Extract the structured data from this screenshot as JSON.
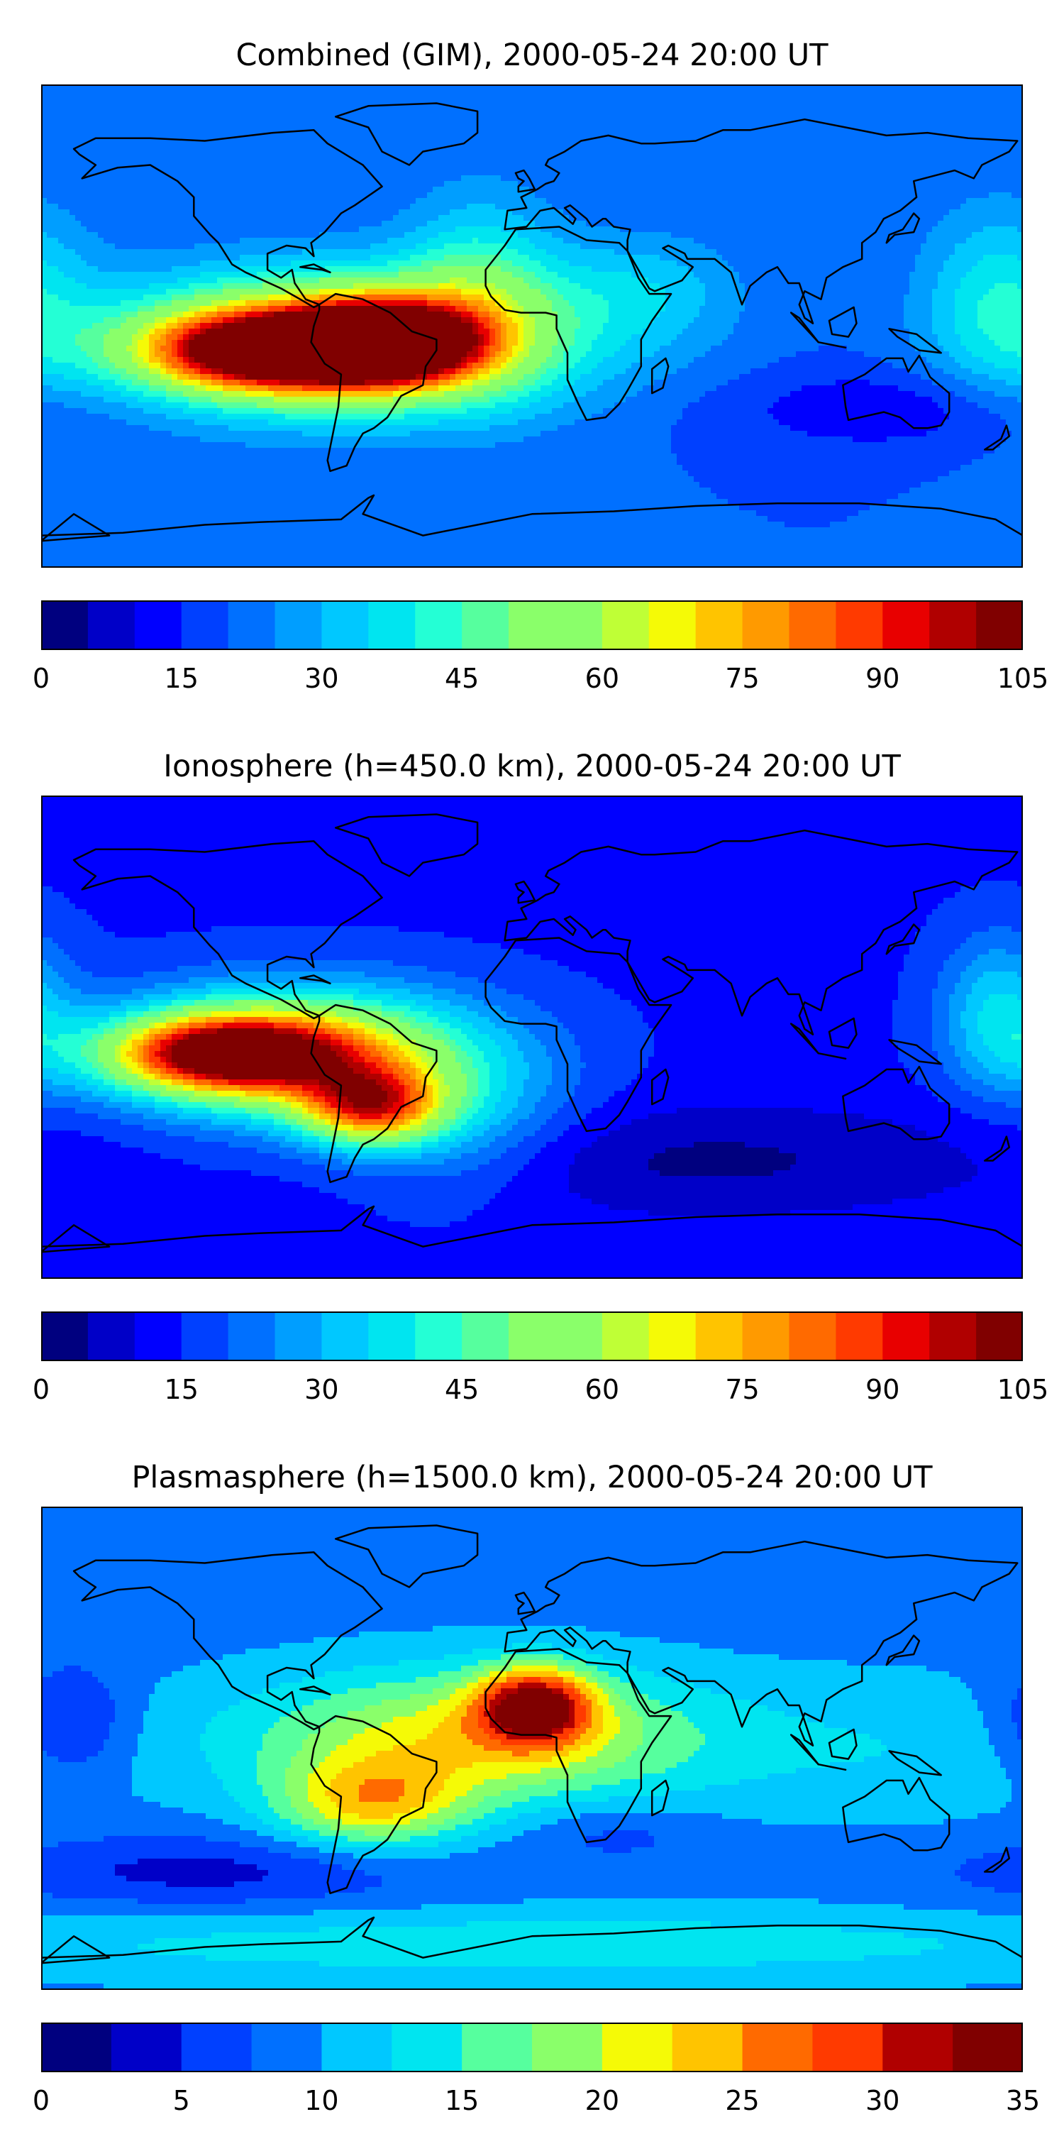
{
  "colormap": [
    "#00007f",
    "#0000c8",
    "#0000ff",
    "#0040ff",
    "#0070ff",
    "#009eff",
    "#00c8ff",
    "#00e5f0",
    "#24ffd5",
    "#56ff9e",
    "#8aff6a",
    "#bfff36",
    "#f5fa06",
    "#ffc400",
    "#ff9a00",
    "#ff6a00",
    "#ff3a00",
    "#e80000",
    "#b00000",
    "#800000"
  ],
  "land_color": "#0d1a7f",
  "coast_color": "#000000",
  "maps": [
    {
      "title": "Combined (GIM), 2000-05-24 20:00 UT",
      "colorbar": {
        "min": 0,
        "max": 105,
        "levels": 21,
        "ticks": [
          "0",
          "15",
          "30",
          "45",
          "60",
          "75",
          "90",
          "105"
        ]
      },
      "base_value": 20,
      "features": [
        {
          "lon": -70,
          "lat": -5,
          "rlon": 55,
          "rlat": 18,
          "value": 78
        },
        {
          "lon": -100,
          "lat": -8,
          "rlon": 30,
          "rlat": 10,
          "value": 88
        },
        {
          "lon": -55,
          "lat": -5,
          "rlon": 22,
          "rlat": 10,
          "value": 95
        },
        {
          "lon": -20,
          "lat": 15,
          "rlon": 20,
          "rlat": 25,
          "value": 40
        },
        {
          "lon": 40,
          "lat": 15,
          "rlon": 25,
          "rlat": 15,
          "value": 32
        },
        {
          "lon": 170,
          "lat": 10,
          "rlon": 20,
          "rlat": 25,
          "value": 38
        },
        {
          "lon": 130,
          "lat": -30,
          "rlon": 40,
          "rlat": 10,
          "value": 10
        }
      ]
    },
    {
      "title": "Ionosphere  (h=450.0 km), 2000-05-24 20:00 UT",
      "colorbar": {
        "min": 0,
        "max": 105,
        "levels": 21,
        "ticks": [
          "0",
          "15",
          "30",
          "45",
          "60",
          "75",
          "90",
          "105"
        ]
      },
      "base_value": 14,
      "features": [
        {
          "lon": -85,
          "lat": -5,
          "rlon": 45,
          "rlat": 17,
          "value": 68
        },
        {
          "lon": -115,
          "lat": -5,
          "rlon": 30,
          "rlat": 10,
          "value": 82
        },
        {
          "lon": -60,
          "lat": -25,
          "rlon": 18,
          "rlat": 10,
          "value": 68
        },
        {
          "lon": -30,
          "lat": -30,
          "rlon": 30,
          "rlat": 20,
          "value": 30
        },
        {
          "lon": 170,
          "lat": 10,
          "rlon": 15,
          "rlat": 20,
          "value": 35
        },
        {
          "lon": 60,
          "lat": -45,
          "rlon": 80,
          "rlat": 15,
          "value": 4
        }
      ]
    },
    {
      "title": "Plasmasphere (h=1500.0 km), 2000-05-24 20:00 UT",
      "colorbar": {
        "min": 0,
        "max": 35,
        "levels": 14,
        "ticks": [
          "0",
          "5",
          "10",
          "15",
          "20",
          "25",
          "30",
          "35"
        ]
      },
      "base_value": 9,
      "features": [
        {
          "lon": -20,
          "lat": 5,
          "rlon": 60,
          "rlat": 18,
          "value": 22
        },
        {
          "lon": 0,
          "lat": 17,
          "rlon": 15,
          "rlat": 10,
          "value": 29
        },
        {
          "lon": -60,
          "lat": -20,
          "rlon": 25,
          "rlat": 12,
          "value": 21
        },
        {
          "lon": 140,
          "lat": 0,
          "rlon": 50,
          "rlat": 20,
          "value": 12
        },
        {
          "lon": -120,
          "lat": -45,
          "rlon": 60,
          "rlat": 10,
          "value": 4
        },
        {
          "lon": 0,
          "lat": -72,
          "rlon": 180,
          "rlat": 10,
          "value": 14
        },
        {
          "lon": -170,
          "lat": 10,
          "rlon": 15,
          "rlat": 15,
          "value": 3
        },
        {
          "lon": 30,
          "lat": -30,
          "rlon": 25,
          "rlat": 8,
          "value": 6
        }
      ]
    }
  ]
}
